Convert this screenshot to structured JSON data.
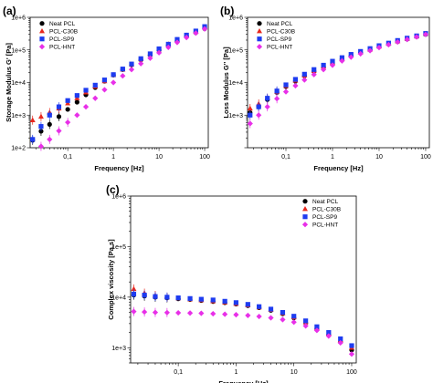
{
  "chart_data": [
    {
      "panel": "(a)",
      "type": "scatter",
      "xlabel": "Frequency [Hz]",
      "ylabel": "Storage Modulus G' [Pa]",
      "x_scale": "log",
      "y_scale": "log",
      "xlim": [
        0.015,
        120
      ],
      "ylim": [
        100,
        1000000
      ],
      "x_ticks": [
        "0,1",
        "1",
        "10",
        "100"
      ],
      "y_ticks": [
        "1e+2",
        "1e+3",
        "1e+4",
        "1e+5",
        "1e+6"
      ],
      "legend_position": "top-left",
      "series": [
        {
          "name": "Neat PCL",
          "marker": "circle",
          "color": "#000000",
          "x": [
            0.017,
            0.026,
            0.04,
            0.064,
            0.1,
            0.16,
            0.25,
            0.4,
            0.64,
            1,
            1.6,
            2.5,
            4,
            6.4,
            10,
            16,
            25,
            40,
            64,
            100
          ],
          "y": [
            170,
            320,
            520,
            900,
            1500,
            2500,
            4200,
            7000,
            11000,
            17000,
            25000,
            35000,
            50000,
            70000,
            100000,
            140000,
            190000,
            260000,
            340000,
            450000
          ]
        },
        {
          "name": "PCL-C30B",
          "marker": "triangle",
          "color": "#e8281e",
          "x": [
            0.017,
            0.026,
            0.04,
            0.064,
            0.1,
            0.16,
            0.25,
            0.4,
            0.64,
            1,
            1.6,
            2.5,
            4,
            6.4,
            10,
            16,
            25,
            40,
            64,
            100
          ],
          "y": [
            700,
            900,
            1200,
            1600,
            2300,
            3300,
            5000,
            7500,
            11000,
            17000,
            25000,
            36000,
            52000,
            74000,
            105000,
            150000,
            205000,
            280000,
            370000,
            500000
          ]
        },
        {
          "name": "PCL-SP9",
          "marker": "square",
          "color": "#1e3cf0",
          "x": [
            0.017,
            0.026,
            0.04,
            0.064,
            0.1,
            0.16,
            0.25,
            0.4,
            0.64,
            1,
            1.6,
            2.5,
            4,
            6.4,
            10,
            16,
            25,
            40,
            64,
            100
          ],
          "y": [
            180,
            450,
            1000,
            1800,
            2800,
            4000,
            5800,
            8300,
            12000,
            17500,
            26000,
            37000,
            54000,
            76000,
            108000,
            150000,
            210000,
            285000,
            380000,
            520000
          ]
        },
        {
          "name": "PCL-HNT",
          "marker": "diamond",
          "color": "#e830e8",
          "x": [
            0.026,
            0.04,
            0.064,
            0.1,
            0.16,
            0.25,
            0.4,
            0.64,
            1,
            1.6,
            2.5,
            4,
            6.4,
            10,
            16,
            25,
            40,
            64,
            100
          ],
          "y": [
            110,
            180,
            330,
            600,
            1000,
            1800,
            3300,
            6000,
            10000,
            16000,
            25000,
            38000,
            56000,
            82000,
            120000,
            170000,
            240000,
            330000,
            440000
          ]
        }
      ]
    },
    {
      "panel": "(b)",
      "type": "scatter",
      "xlabel": "Frequency [Hz]",
      "ylabel": "Loss Modulus G'' [Pa]",
      "x_scale": "log",
      "y_scale": "log",
      "xlim": [
        0.015,
        120
      ],
      "ylim": [
        100,
        1000000
      ],
      "x_ticks": [
        "0,1",
        "1",
        "10",
        "100"
      ],
      "y_ticks": [
        "1e+3",
        "1e+4",
        "1e+5",
        "1e+6"
      ],
      "legend_position": "top-left",
      "series": [
        {
          "name": "Neat PCL",
          "marker": "circle",
          "color": "#000000",
          "x": [
            0.017,
            0.026,
            0.04,
            0.064,
            0.1,
            0.16,
            0.25,
            0.4,
            0.64,
            1,
            1.6,
            2.5,
            4,
            6.4,
            10,
            16,
            25,
            40,
            64,
            100
          ],
          "y": [
            1200,
            1800,
            3000,
            5000,
            7500,
            11000,
            16000,
            22000,
            30000,
            40000,
            52000,
            66000,
            82000,
            100000,
            125000,
            150000,
            180000,
            215000,
            255000,
            300000
          ]
        },
        {
          "name": "PCL-C30B",
          "marker": "triangle",
          "color": "#e8281e",
          "x": [
            0.017,
            0.026,
            0.04,
            0.064,
            0.1,
            0.16,
            0.25,
            0.4,
            0.64,
            1,
            1.6,
            2.5,
            4,
            6.4,
            10,
            16,
            25,
            40,
            64,
            100
          ],
          "y": [
            1600,
            2200,
            3300,
            5200,
            7800,
            11500,
            16500,
            23000,
            31000,
            41000,
            54000,
            68000,
            84000,
            103000,
            128000,
            155000,
            185000,
            220000,
            260000,
            310000
          ]
        },
        {
          "name": "PCL-SP9",
          "marker": "square",
          "color": "#1e3cf0",
          "x": [
            0.017,
            0.026,
            0.04,
            0.064,
            0.1,
            0.16,
            0.25,
            0.4,
            0.64,
            1,
            1.6,
            2.5,
            4,
            6.4,
            10,
            16,
            25,
            40,
            64,
            100
          ],
          "y": [
            1000,
            1800,
            3300,
            5500,
            8500,
            12500,
            18000,
            25000,
            34000,
            45000,
            58000,
            73000,
            90000,
            110000,
            135000,
            162000,
            195000,
            230000,
            270000,
            320000
          ]
        },
        {
          "name": "PCL-HNT",
          "marker": "diamond",
          "color": "#e830e8",
          "x": [
            0.017,
            0.026,
            0.04,
            0.064,
            0.1,
            0.16,
            0.25,
            0.4,
            0.64,
            1,
            1.6,
            2.5,
            4,
            6.4,
            10,
            16,
            25,
            40,
            64,
            100
          ],
          "y": [
            550,
            1000,
            1800,
            3200,
            5200,
            8000,
            12000,
            17500,
            25000,
            34000,
            46000,
            60000,
            76000,
            95000,
            118000,
            145000,
            175000,
            210000,
            250000,
            300000
          ]
        }
      ]
    },
    {
      "panel": "(c)",
      "type": "scatter",
      "xlabel": "Frequency [Hz]",
      "ylabel": "Complex viscosity [Pa.s]",
      "x_scale": "log",
      "y_scale": "log",
      "xlim": [
        0.015,
        120
      ],
      "ylim": [
        500,
        1000000
      ],
      "x_ticks": [
        "0,1",
        "1",
        "10",
        "100"
      ],
      "y_ticks": [
        "1e+3",
        "1e+4",
        "1e+5",
        "1e+6"
      ],
      "legend_position": "top-right",
      "series": [
        {
          "name": "Neat PCL",
          "marker": "circle",
          "color": "#000000",
          "x": [
            0.017,
            0.026,
            0.04,
            0.064,
            0.1,
            0.16,
            0.25,
            0.4,
            0.64,
            1,
            1.6,
            2.5,
            4,
            6.4,
            10,
            16,
            25,
            40,
            64,
            100
          ],
          "y": [
            11000,
            10500,
            10000,
            9700,
            9300,
            9000,
            8600,
            8200,
            7800,
            7300,
            6800,
            6200,
            5500,
            4700,
            3900,
            3100,
            2400,
            1800,
            1300,
            900
          ]
        },
        {
          "name": "PCL-C30B",
          "marker": "triangle",
          "color": "#e8281e",
          "x": [
            0.017,
            0.026,
            0.04,
            0.064,
            0.1,
            0.16,
            0.25,
            0.4,
            0.64,
            1,
            1.6,
            2.5,
            4,
            6.4,
            10,
            16,
            25,
            40,
            64,
            100
          ],
          "y": [
            14500,
            12000,
            10800,
            10000,
            9500,
            9100,
            8700,
            8300,
            7900,
            7400,
            6900,
            6300,
            5600,
            4800,
            4000,
            3200,
            2500,
            1900,
            1400,
            1000
          ]
        },
        {
          "name": "PCL-SP9",
          "marker": "square",
          "color": "#1e3cf0",
          "x": [
            0.017,
            0.026,
            0.04,
            0.064,
            0.1,
            0.16,
            0.25,
            0.4,
            0.64,
            1,
            1.6,
            2.5,
            4,
            6.4,
            10,
            16,
            25,
            40,
            64,
            100
          ],
          "y": [
            11500,
            11000,
            10300,
            10000,
            9700,
            9400,
            9100,
            8800,
            8300,
            7800,
            7200,
            6500,
            5800,
            5000,
            4200,
            3400,
            2600,
            2000,
            1500,
            1100
          ]
        },
        {
          "name": "PCL-HNT",
          "marker": "diamond",
          "color": "#e830e8",
          "x": [
            0.017,
            0.026,
            0.04,
            0.064,
            0.1,
            0.16,
            0.25,
            0.4,
            0.64,
            1,
            1.6,
            2.5,
            4,
            6.4,
            10,
            16,
            25,
            40,
            64,
            100
          ],
          "y": [
            5200,
            5100,
            5000,
            4950,
            4900,
            4850,
            4800,
            4700,
            4600,
            4500,
            4350,
            4150,
            3900,
            3600,
            3200,
            2700,
            2200,
            1700,
            1250,
            750
          ]
        }
      ]
    }
  ]
}
